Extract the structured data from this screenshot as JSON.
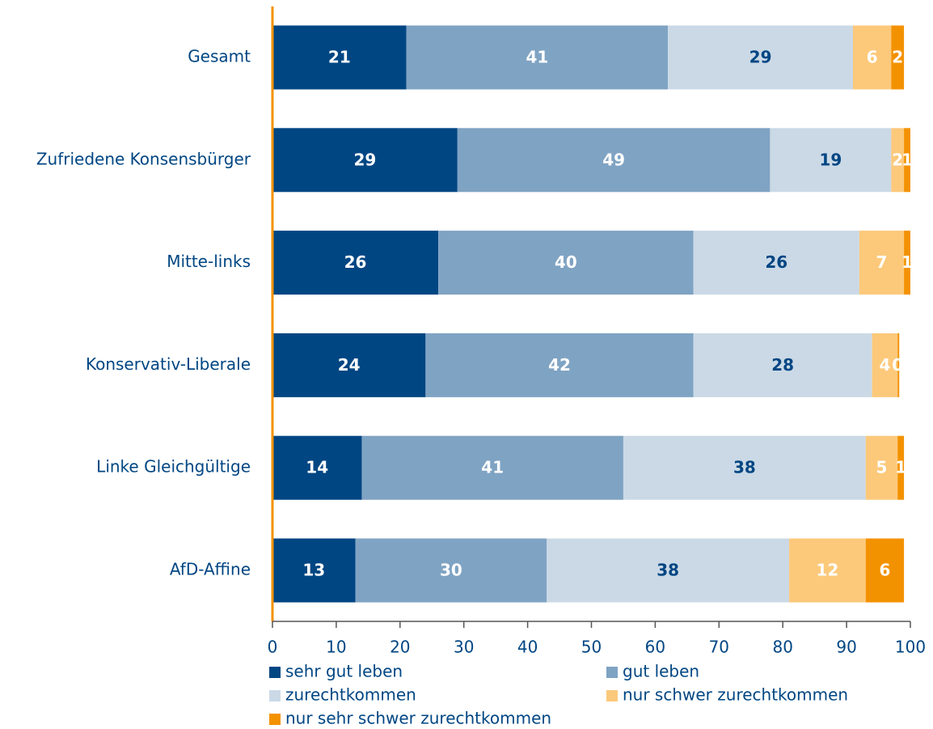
{
  "chart_data": {
    "type": "stacked_bar_horizontal",
    "categories": [
      "Gesamt",
      "Zufriedene Konsensbürger",
      "Mitte-links",
      "Konservativ-Liberale",
      "Linke Gleichgültige",
      "AfD-Affine"
    ],
    "series": [
      {
        "name": "sehr gut leben",
        "color": "#004683",
        "label_color": "#ffffff",
        "values": [
          21,
          29,
          26,
          24,
          14,
          13
        ]
      },
      {
        "name": "gut leben",
        "color": "#7fa3c3",
        "label_color": "#ffffff",
        "values": [
          41,
          49,
          40,
          42,
          41,
          30
        ]
      },
      {
        "name": "zurechtkommen",
        "color": "#cbd9e6",
        "label_color": "#004683",
        "values": [
          29,
          19,
          26,
          28,
          38,
          38
        ]
      },
      {
        "name": "nur schwer zurechtkommen",
        "color": "#fcc97b",
        "label_color": "#ffffff",
        "values": [
          6,
          2,
          7,
          4,
          5,
          12
        ]
      },
      {
        "name": "nur sehr schwer zurechtkommen",
        "color": "#f39200",
        "label_color": "#ffffff",
        "values": [
          2,
          1,
          1,
          0,
          1,
          6
        ]
      }
    ],
    "xlim": [
      0,
      100
    ],
    "xticks": [
      0,
      10,
      20,
      30,
      40,
      50,
      60,
      70,
      80,
      90,
      100
    ]
  }
}
